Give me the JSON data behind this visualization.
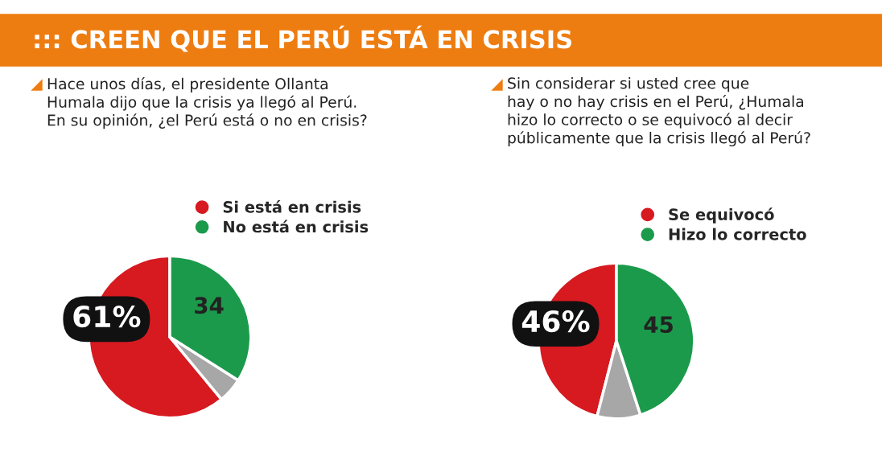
{
  "chart_data": [
    {
      "type": "pie",
      "title": "::: CREEN QUE EL PERÚ ESTÁ EN CRISIS",
      "subtitle": "Hace unos días, el presidente Ollanta\nHumala dijo que la crisis ya llegó al Perú.\nEn su opinión, ¿el Perú está o no en crisis?",
      "categories": [
        "Si está en crisis",
        null,
        "No está en crisis"
      ],
      "values": [
        61,
        5,
        34
      ],
      "colors": [
        "#d71920",
        "#a7a7a7",
        "#1b9a4b"
      ],
      "value_labels": [
        "61%",
        null,
        "34"
      ],
      "legend": "top right"
    },
    {
      "type": "pie",
      "subtitle": "Sin considerar si usted cree que\nhay o no hay crisis en el Perú, ¿Humala\nhizo lo correcto o se equivocó al decir\npúblicamente que la crisis llegó al Perú?",
      "categories": [
        "Se equivocó",
        null,
        "Hizo lo correcto"
      ],
      "values": [
        46,
        9,
        45
      ],
      "colors": [
        "#d71920",
        "#a7a7a7",
        "#1b9a4b"
      ],
      "value_labels": [
        "46%",
        null,
        "45"
      ],
      "legend": "top right"
    }
  ]
}
